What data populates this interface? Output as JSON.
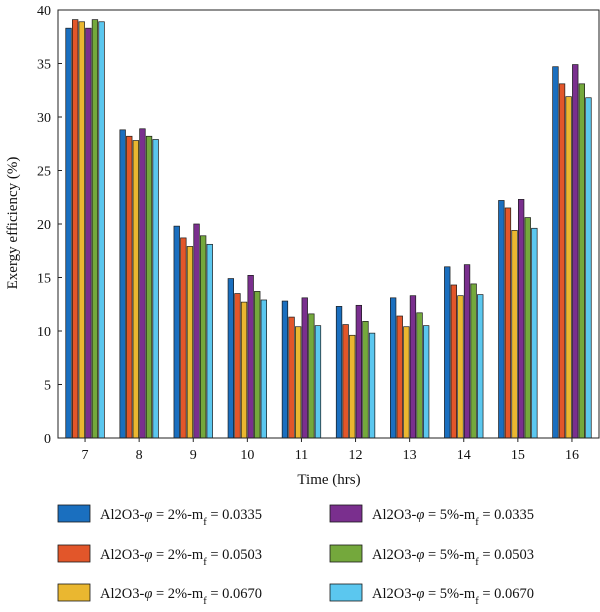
{
  "chart_data": {
    "type": "bar",
    "xlabel": "Time (hrs)",
    "ylabel": "Exergy efficiency (%)",
    "ylim": [
      0,
      40
    ],
    "yticks": [
      0,
      5,
      10,
      15,
      20,
      25,
      30,
      35,
      40
    ],
    "categories": [
      "7",
      "8",
      "9",
      "10",
      "11",
      "12",
      "13",
      "14",
      "15",
      "16"
    ],
    "legend_position": "bottom",
    "grid": false,
    "series": [
      {
        "name": "Al2O3-φ = 2%-mf = 0.0335",
        "label_main": "Al2O3-",
        "label_phi": "φ",
        "label_mid": " = 2%-m",
        "label_sub": "f",
        "label_end": " = 0.0335",
        "color": "#1a6fbf",
        "values": [
          38.3,
          28.8,
          19.8,
          14.9,
          12.8,
          12.3,
          13.1,
          16.0,
          22.2,
          34.7
        ]
      },
      {
        "name": "Al2O3-φ = 2%-mf = 0.0503",
        "label_main": "Al2O3-",
        "label_phi": "φ",
        "label_mid": " = 2%-m",
        "label_sub": "f",
        "label_end": " = 0.0503",
        "color": "#e2562a",
        "values": [
          39.1,
          28.2,
          18.7,
          13.5,
          11.3,
          10.6,
          11.4,
          14.3,
          21.5,
          33.1
        ]
      },
      {
        "name": "Al2O3-φ = 2%-mf = 0.0670",
        "label_main": "Al2O3-",
        "label_phi": "φ",
        "label_mid": " = 2%-m",
        "label_sub": "f",
        "label_end": " = 0.0670",
        "color": "#eab730",
        "values": [
          38.9,
          27.8,
          17.9,
          12.7,
          10.4,
          9.6,
          10.4,
          13.3,
          19.4,
          31.9
        ]
      },
      {
        "name": "Al2O3-φ = 5%-mf = 0.0335",
        "label_main": "Al2O3-",
        "label_phi": "φ",
        "label_mid": " = 5%-m",
        "label_sub": "f",
        "label_end": " = 0.0335",
        "color": "#7a2f8e",
        "values": [
          38.3,
          28.9,
          20.0,
          15.2,
          13.1,
          12.4,
          13.3,
          16.2,
          22.3,
          34.9
        ]
      },
      {
        "name": "Al2O3-φ = 5%-mf = 0.0503",
        "label_main": "Al2O3-",
        "label_phi": "φ",
        "label_mid": " = 5%-m",
        "label_sub": "f",
        "label_end": " = 0.0503",
        "color": "#74a83c",
        "values": [
          39.1,
          28.2,
          18.9,
          13.7,
          11.6,
          10.9,
          11.7,
          14.4,
          20.6,
          33.1
        ]
      },
      {
        "name": "Al2O3-φ = 5%-mf = 0.0670",
        "label_main": "Al2O3-",
        "label_phi": "φ",
        "label_mid": " = 5%-m",
        "label_sub": "f",
        "label_end": " = 0.0670",
        "color": "#5bc7ef",
        "values": [
          38.9,
          27.9,
          18.1,
          12.9,
          10.5,
          9.8,
          10.5,
          13.4,
          19.6,
          31.8
        ]
      }
    ]
  }
}
